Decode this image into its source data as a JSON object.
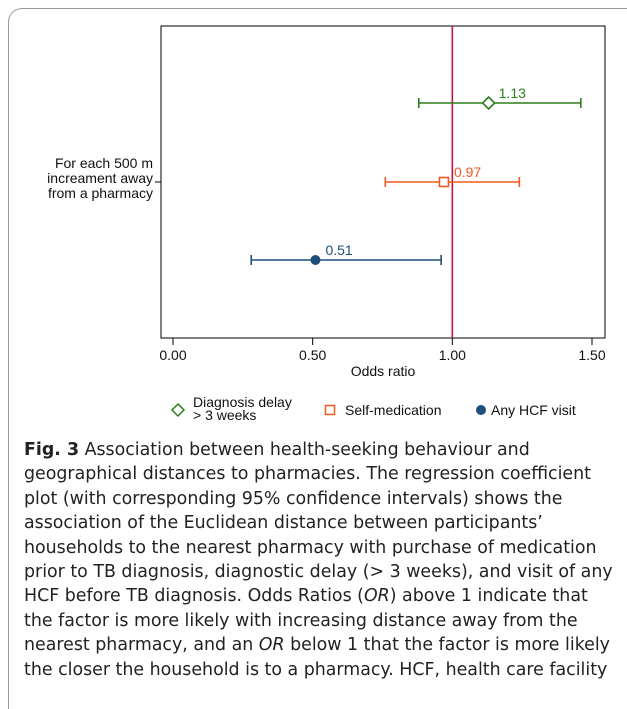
{
  "chart_data": {
    "type": "forest",
    "y_category_label": [
      "For each 500 m",
      "increament away",
      "from a pharmacy"
    ],
    "xlabel": "Odds ratio",
    "xlim": [
      0,
      1.5
    ],
    "x_ticks": [
      "0.00",
      "0.50",
      "1.00",
      "1.50"
    ],
    "reference_line": 1.0,
    "series": [
      {
        "name": "Diagnosis delay\n> 3 weeks",
        "or": 1.13,
        "ci_low": 0.88,
        "ci_high": 1.46,
        "label": "1.13",
        "marker": "diamond-open",
        "color": "#2e7d1c"
      },
      {
        "name": "Self-medication",
        "or": 0.97,
        "ci_low": 0.76,
        "ci_high": 1.24,
        "label": "0.97",
        "marker": "square-open",
        "color": "#f05a1e"
      },
      {
        "name": "Any HCF visit",
        "or": 0.51,
        "ci_low": 0.28,
        "ci_high": 0.96,
        "label": "0.51",
        "marker": "circle-filled",
        "color": "#1f4e79"
      }
    ],
    "reference_line_color": "#c0134a",
    "legend_position": "bottom"
  },
  "caption": {
    "fig_label": "Fig. 3",
    "text_parts": [
      {
        "t": " Association between health-seeking behaviour and geographical distances to pharmacies. The regression coefficient plot (with corresponding 95% confidence intervals) shows the association of the Euclidean distance between participants’ households to the nearest pharmacy with purchase of medication prior to TB diagnosis, diagnostic delay (> 3 weeks), and visit of any HCF before TB diagnosis. Odds Ratios (",
        "i": false
      },
      {
        "t": "OR",
        "i": true
      },
      {
        "t": ") above 1 indicate that the factor is more likely with increasing distance away from the nearest pharmacy, and an ",
        "i": false
      },
      {
        "t": "OR",
        "i": true
      },
      {
        "t": " below 1 that the factor is more likely the closer the household is to a pharmacy. HCF, health care facility",
        "i": false
      }
    ]
  }
}
